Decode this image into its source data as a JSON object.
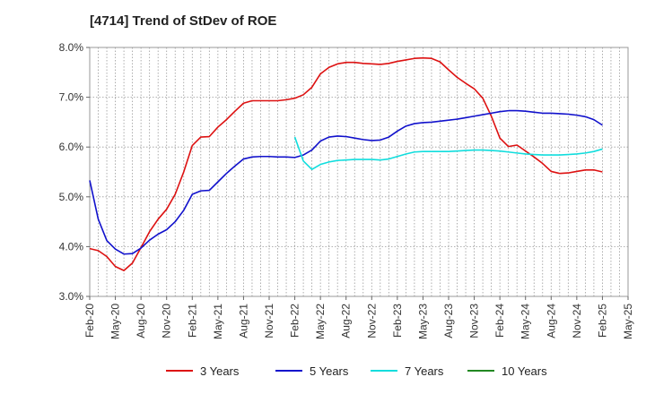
{
  "chart_data": {
    "type": "line",
    "title": "[4714]  Trend of StDev of ROE",
    "xlabel": "",
    "ylabel": "",
    "x_range": [
      "2020-02",
      "2025-05"
    ],
    "ylim": [
      3.0,
      8.0
    ],
    "y_ticks": [
      3.0,
      4.0,
      5.0,
      6.0,
      7.0,
      8.0
    ],
    "y_tick_labels": [
      "3.0%",
      "4.0%",
      "5.0%",
      "6.0%",
      "7.0%",
      "8.0%"
    ],
    "x_tick_labels": [
      "Feb-20",
      "May-20",
      "Aug-20",
      "Nov-20",
      "Feb-21",
      "May-21",
      "Aug-21",
      "Nov-21",
      "Feb-22",
      "May-22",
      "Aug-22",
      "Nov-22",
      "Feb-23",
      "May-23",
      "Aug-23",
      "Nov-23",
      "Feb-24",
      "May-24",
      "Aug-24",
      "Nov-24",
      "Feb-25",
      "May-25"
    ],
    "grid": true,
    "legend_position": "bottom",
    "series": [
      {
        "name": "3 Years",
        "color": "#dd1111",
        "points": [
          [
            "2020-02",
            3.96
          ],
          [
            "2020-03",
            3.92
          ],
          [
            "2020-04",
            3.8
          ],
          [
            "2020-05",
            3.6
          ],
          [
            "2020-06",
            3.52
          ],
          [
            "2020-07",
            3.67
          ],
          [
            "2020-08",
            3.98
          ],
          [
            "2020-09",
            4.3
          ],
          [
            "2020-10",
            4.55
          ],
          [
            "2020-11",
            4.75
          ],
          [
            "2020-12",
            5.05
          ],
          [
            "2021-01",
            5.5
          ],
          [
            "2021-02",
            6.03
          ],
          [
            "2021-03",
            6.2
          ],
          [
            "2021-04",
            6.21
          ],
          [
            "2021-05",
            6.4
          ],
          [
            "2021-06",
            6.55
          ],
          [
            "2021-07",
            6.72
          ],
          [
            "2021-08",
            6.88
          ],
          [
            "2021-09",
            6.93
          ],
          [
            "2021-10",
            6.93
          ],
          [
            "2021-11",
            6.93
          ],
          [
            "2021-12",
            6.93
          ],
          [
            "2022-01",
            6.95
          ],
          [
            "2022-02",
            6.98
          ],
          [
            "2022-03",
            7.05
          ],
          [
            "2022-04",
            7.2
          ],
          [
            "2022-05",
            7.47
          ],
          [
            "2022-06",
            7.6
          ],
          [
            "2022-07",
            7.67
          ],
          [
            "2022-08",
            7.7
          ],
          [
            "2022-09",
            7.7
          ],
          [
            "2022-10",
            7.68
          ],
          [
            "2022-11",
            7.67
          ],
          [
            "2022-12",
            7.66
          ],
          [
            "2023-01",
            7.68
          ],
          [
            "2023-02",
            7.72
          ],
          [
            "2023-03",
            7.75
          ],
          [
            "2023-04",
            7.78
          ],
          [
            "2023-05",
            7.79
          ],
          [
            "2023-06",
            7.78
          ],
          [
            "2023-07",
            7.71
          ],
          [
            "2023-08",
            7.55
          ],
          [
            "2023-09",
            7.4
          ],
          [
            "2023-10",
            7.28
          ],
          [
            "2023-11",
            7.17
          ],
          [
            "2023-12",
            6.98
          ],
          [
            "2024-01",
            6.62
          ],
          [
            "2024-02",
            6.18
          ],
          [
            "2024-03",
            6.01
          ],
          [
            "2024-04",
            6.04
          ],
          [
            "2024-05",
            5.92
          ],
          [
            "2024-06",
            5.8
          ],
          [
            "2024-07",
            5.67
          ],
          [
            "2024-08",
            5.51
          ],
          [
            "2024-09",
            5.47
          ],
          [
            "2024-10",
            5.48
          ],
          [
            "2024-11",
            5.51
          ],
          [
            "2024-12",
            5.54
          ],
          [
            "2025-01",
            5.54
          ],
          [
            "2025-02",
            5.5
          ]
        ]
      },
      {
        "name": "5 Years",
        "color": "#1111cc",
        "points": [
          [
            "2020-02",
            5.33
          ],
          [
            "2020-03",
            4.55
          ],
          [
            "2020-04",
            4.12
          ],
          [
            "2020-05",
            3.95
          ],
          [
            "2020-06",
            3.85
          ],
          [
            "2020-07",
            3.86
          ],
          [
            "2020-08",
            3.97
          ],
          [
            "2020-09",
            4.13
          ],
          [
            "2020-10",
            4.25
          ],
          [
            "2020-11",
            4.34
          ],
          [
            "2020-12",
            4.5
          ],
          [
            "2021-01",
            4.73
          ],
          [
            "2021-02",
            5.05
          ],
          [
            "2021-03",
            5.12
          ],
          [
            "2021-04",
            5.13
          ],
          [
            "2021-05",
            5.3
          ],
          [
            "2021-06",
            5.47
          ],
          [
            "2021-07",
            5.62
          ],
          [
            "2021-08",
            5.76
          ],
          [
            "2021-09",
            5.8
          ],
          [
            "2021-10",
            5.81
          ],
          [
            "2021-11",
            5.81
          ],
          [
            "2021-12",
            5.8
          ],
          [
            "2022-01",
            5.8
          ],
          [
            "2022-02",
            5.79
          ],
          [
            "2022-03",
            5.84
          ],
          [
            "2022-04",
            5.94
          ],
          [
            "2022-05",
            6.12
          ],
          [
            "2022-06",
            6.2
          ],
          [
            "2022-07",
            6.22
          ],
          [
            "2022-08",
            6.21
          ],
          [
            "2022-09",
            6.18
          ],
          [
            "2022-10",
            6.15
          ],
          [
            "2022-11",
            6.13
          ],
          [
            "2022-12",
            6.14
          ],
          [
            "2023-01",
            6.2
          ],
          [
            "2023-02",
            6.32
          ],
          [
            "2023-03",
            6.42
          ],
          [
            "2023-04",
            6.47
          ],
          [
            "2023-05",
            6.49
          ],
          [
            "2023-06",
            6.5
          ],
          [
            "2023-07",
            6.52
          ],
          [
            "2023-08",
            6.54
          ],
          [
            "2023-09",
            6.56
          ],
          [
            "2023-10",
            6.59
          ],
          [
            "2023-11",
            6.62
          ],
          [
            "2023-12",
            6.65
          ],
          [
            "2024-01",
            6.68
          ],
          [
            "2024-02",
            6.71
          ],
          [
            "2024-03",
            6.73
          ],
          [
            "2024-04",
            6.73
          ],
          [
            "2024-05",
            6.72
          ],
          [
            "2024-06",
            6.7
          ],
          [
            "2024-07",
            6.68
          ],
          [
            "2024-08",
            6.68
          ],
          [
            "2024-09",
            6.67
          ],
          [
            "2024-10",
            6.66
          ],
          [
            "2024-11",
            6.64
          ],
          [
            "2024-12",
            6.61
          ],
          [
            "2025-01",
            6.55
          ],
          [
            "2025-02",
            6.44
          ]
        ]
      },
      {
        "name": "7 Years",
        "color": "#11dddd",
        "points": [
          [
            "2022-02",
            6.2
          ],
          [
            "2022-03",
            5.72
          ],
          [
            "2022-04",
            5.55
          ],
          [
            "2022-05",
            5.65
          ],
          [
            "2022-06",
            5.7
          ],
          [
            "2022-07",
            5.73
          ],
          [
            "2022-08",
            5.74
          ],
          [
            "2022-09",
            5.75
          ],
          [
            "2022-10",
            5.75
          ],
          [
            "2022-11",
            5.75
          ],
          [
            "2022-12",
            5.74
          ],
          [
            "2023-01",
            5.76
          ],
          [
            "2023-02",
            5.81
          ],
          [
            "2023-03",
            5.86
          ],
          [
            "2023-04",
            5.9
          ],
          [
            "2023-05",
            5.91
          ],
          [
            "2023-06",
            5.91
          ],
          [
            "2023-07",
            5.91
          ],
          [
            "2023-08",
            5.91
          ],
          [
            "2023-09",
            5.92
          ],
          [
            "2023-10",
            5.93
          ],
          [
            "2023-11",
            5.94
          ],
          [
            "2023-12",
            5.94
          ],
          [
            "2024-01",
            5.93
          ],
          [
            "2024-02",
            5.92
          ],
          [
            "2024-03",
            5.9
          ],
          [
            "2024-04",
            5.88
          ],
          [
            "2024-05",
            5.86
          ],
          [
            "2024-06",
            5.85
          ],
          [
            "2024-07",
            5.84
          ],
          [
            "2024-08",
            5.84
          ],
          [
            "2024-09",
            5.84
          ],
          [
            "2024-10",
            5.85
          ],
          [
            "2024-11",
            5.86
          ],
          [
            "2024-12",
            5.88
          ],
          [
            "2025-01",
            5.91
          ],
          [
            "2025-02",
            5.96
          ]
        ]
      },
      {
        "name": "10 Years",
        "color": "#228822",
        "points": []
      }
    ]
  }
}
